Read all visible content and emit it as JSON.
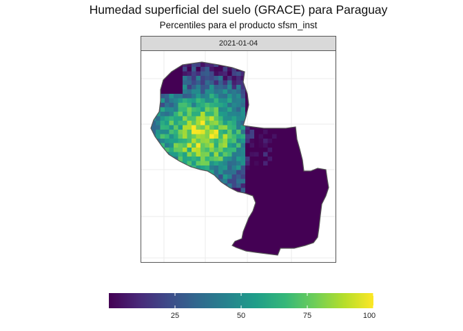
{
  "title": "Humedad superficial del suelo (GRACE) para Paraguay",
  "subtitle": "Percentiles para el producto sfsm_inst",
  "panel": {
    "date": "2021-01-04"
  },
  "legend": {
    "min": 0,
    "max": 100,
    "ticks": [
      {
        "value": 25,
        "label": "25"
      },
      {
        "value": 50,
        "label": "50"
      },
      {
        "value": 75,
        "label": "75"
      },
      {
        "value": 100,
        "label": "100"
      }
    ],
    "palette": "viridis",
    "colors": [
      "#440154",
      "#482878",
      "#3e4a89",
      "#31688e",
      "#26828e",
      "#1f9e89",
      "#35b779",
      "#6ece58",
      "#b5de2b",
      "#fde725"
    ]
  },
  "map_data": {
    "region": "Paraguay",
    "variable": "sfsm_inst percentile",
    "pattern": "high percentiles (yellow) in the western Chaco, low percentiles (purple) in the east and south"
  }
}
